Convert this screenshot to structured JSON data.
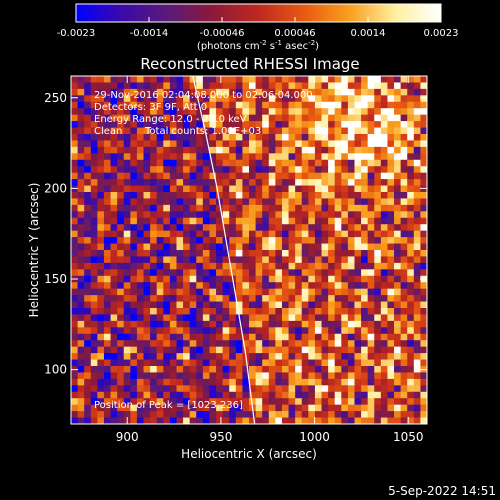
{
  "colorbar": {
    "ticks": [
      "-0.0023",
      "-0.0014",
      "-0.00046",
      "0.00046",
      "0.0014",
      "0.0023"
    ],
    "unit_main": "(photons cm",
    "unit_exp1": "-2",
    "unit_mid": " s",
    "unit_exp2": "-1",
    "unit_mid2": " asec",
    "unit_exp3": "-2",
    "unit_close": ")",
    "stops": [
      "#0000ff",
      "#3b0aa8",
      "#5a1a78",
      "#8b1a3a",
      "#c0281e",
      "#e85a12",
      "#f9a01e",
      "#fff0a0",
      "#ffffff"
    ]
  },
  "chart_data": {
    "type": "heatmap",
    "title": "Reconstructed RHESSI Image",
    "xlabel": "Heliocentric X (arcsec)",
    "ylabel": "Heliocentric Y (arcsec)",
    "xlim": [
      870,
      1060
    ],
    "ylim": [
      70,
      262
    ],
    "xticks": [
      900,
      950,
      1000,
      1050
    ],
    "yticks": [
      100,
      150,
      200,
      250
    ],
    "clim": [
      -0.0023,
      0.0023
    ],
    "limb_curve": [
      [
        935,
        262
      ],
      [
        942,
        230
      ],
      [
        948,
        200
      ],
      [
        953,
        170
      ],
      [
        958,
        140
      ],
      [
        963,
        110
      ],
      [
        968,
        70
      ]
    ],
    "peak": [
      1023,
      236
    ],
    "annotations": [
      "29-Nov-2016 02:04:08.000 to 02:06:04.000",
      "Detectors: 3F 9F, Att 0",
      "Energy Range: 12.0 - 25.0 keV",
      "Clean",
      "Total counts: 1.00E+03"
    ],
    "peak_label": "Position of Peak = [1023,236]"
  },
  "footer": {
    "date": "5-Sep-2022 14:51"
  }
}
